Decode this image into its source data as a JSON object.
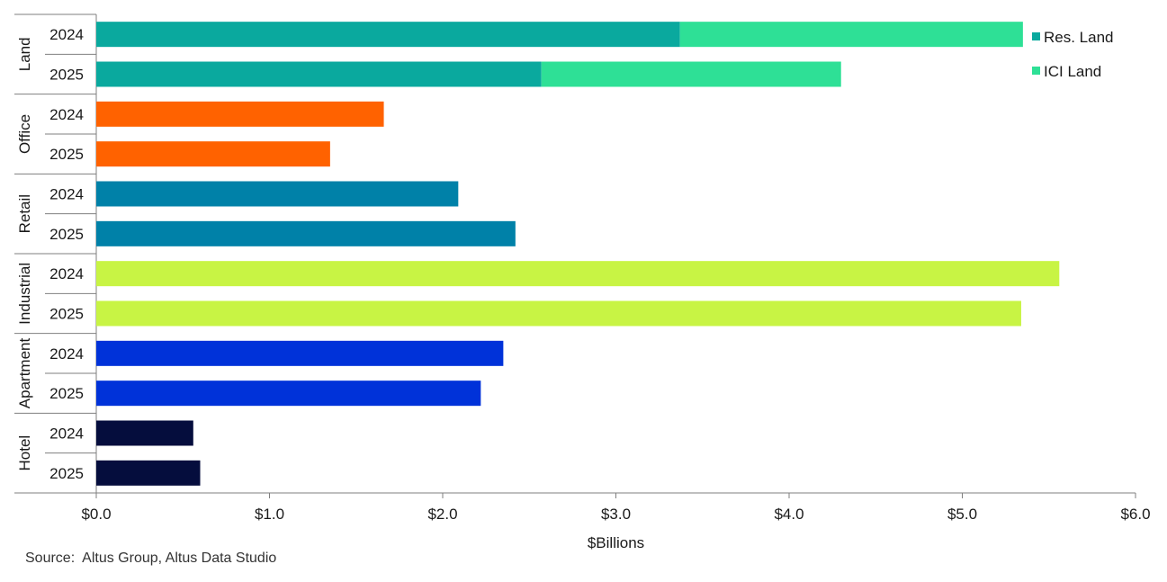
{
  "chart_data": {
    "type": "bar",
    "orientation": "horizontal",
    "stacked": true,
    "xlabel": "$Billions",
    "xlim": [
      0,
      6
    ],
    "x_ticks": [
      "$0.0",
      "$1.0",
      "$2.0",
      "$3.0",
      "$4.0",
      "$5.0",
      "$6.0"
    ],
    "legend": {
      "placement": "top-right",
      "entries": [
        "Res. Land",
        "ICI Land"
      ]
    },
    "groups": [
      {
        "name": "Land",
        "color": "#0aa99e",
        "color2": "#2ee096",
        "bars": [
          {
            "year": "2024",
            "segments": [
              {
                "series": "Res. Land",
                "value": 3.37
              },
              {
                "series": "ICI Land",
                "value": 1.98
              }
            ]
          },
          {
            "year": "2025",
            "segments": [
              {
                "series": "Res. Land",
                "value": 2.57
              },
              {
                "series": "ICI Land",
                "value": 1.73
              }
            ]
          }
        ]
      },
      {
        "name": "Office",
        "color": "#ff6200",
        "bars": [
          {
            "year": "2024",
            "segments": [
              {
                "value": 1.66
              }
            ]
          },
          {
            "year": "2025",
            "segments": [
              {
                "value": 1.35
              }
            ]
          }
        ]
      },
      {
        "name": "Retail",
        "color": "#0081a8",
        "bars": [
          {
            "year": "2024",
            "segments": [
              {
                "value": 2.09
              }
            ]
          },
          {
            "year": "2025",
            "segments": [
              {
                "value": 2.42
              }
            ]
          }
        ]
      },
      {
        "name": "Industrial",
        "color": "#c8f444",
        "bars": [
          {
            "year": "2024",
            "segments": [
              {
                "value": 5.56
              }
            ]
          },
          {
            "year": "2025",
            "segments": [
              {
                "value": 5.34
              }
            ]
          }
        ]
      },
      {
        "name": "Apartment",
        "color": "#0032d9",
        "bars": [
          {
            "year": "2024",
            "segments": [
              {
                "value": 2.35
              }
            ]
          },
          {
            "year": "2025",
            "segments": [
              {
                "value": 2.22
              }
            ]
          }
        ]
      },
      {
        "name": "Hotel",
        "color": "#050d3d",
        "bars": [
          {
            "year": "2024",
            "segments": [
              {
                "value": 0.56
              }
            ]
          },
          {
            "year": "2025",
            "segments": [
              {
                "value": 0.6
              }
            ]
          }
        ]
      }
    ],
    "colors": {
      "Res. Land": "#0aa99e",
      "ICI Land": "#2ee096"
    }
  },
  "source": "Source:  Altus Group, Altus Data Studio"
}
